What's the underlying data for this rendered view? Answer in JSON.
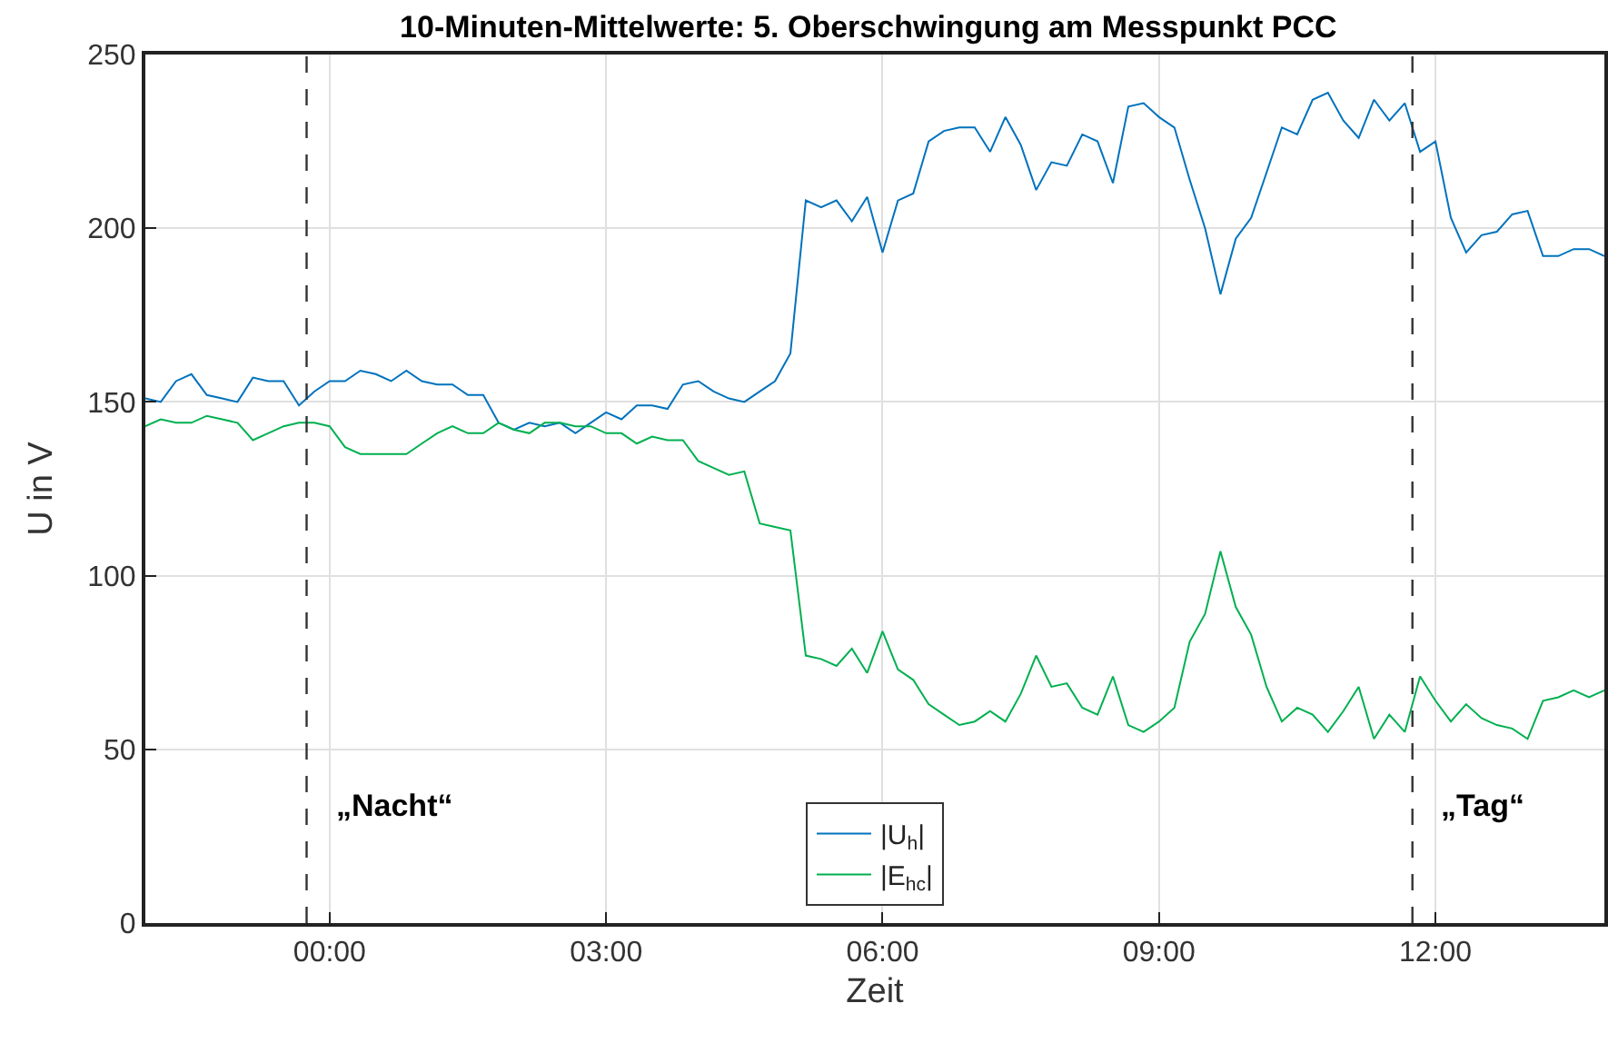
{
  "chart_data": {
    "type": "line",
    "title": "10-Minuten-Mittelwerte: 5. Oberschwingung am Messpunkt PCC",
    "xlabel": "Zeit",
    "ylabel": "U in V",
    "x": [
      -2,
      -1.833,
      -1.667,
      -1.5,
      -1.333,
      -1.167,
      -1,
      -0.833,
      -0.667,
      -0.5,
      -0.333,
      -0.167,
      0,
      0.167,
      0.333,
      0.5,
      0.667,
      0.833,
      1,
      1.167,
      1.333,
      1.5,
      1.667,
      1.833,
      2,
      2.167,
      2.333,
      2.5,
      2.667,
      2.833,
      3,
      3.167,
      3.333,
      3.5,
      3.667,
      3.833,
      4,
      4.167,
      4.333,
      4.5,
      4.667,
      4.833,
      5,
      5.167,
      5.333,
      5.5,
      5.667,
      5.833,
      6,
      6.167,
      6.333,
      6.5,
      6.667,
      6.833,
      7,
      7.167,
      7.333,
      7.5,
      7.667,
      7.833,
      8,
      8.167,
      8.333,
      8.5,
      8.667,
      8.833,
      9,
      9.167,
      9.333,
      9.5,
      9.667,
      9.833,
      10,
      10.167,
      10.333,
      10.5,
      10.667,
      10.833,
      11,
      11.167,
      11.333,
      11.5,
      11.667,
      11.833,
      12,
      12.167,
      12.333,
      12.5,
      12.667,
      12.833,
      13,
      13.167,
      13.333,
      13.5,
      13.667,
      13.833
    ],
    "series": [
      {
        "name": "|U$_{h}$|",
        "color": "#0072bd",
        "values": [
          151,
          150,
          156,
          158,
          152,
          151,
          150,
          157,
          156,
          156,
          149,
          153,
          156,
          156,
          159,
          158,
          156,
          159,
          156,
          155,
          155,
          152,
          152,
          144,
          142,
          144,
          143,
          144,
          141,
          144,
          147,
          145,
          149,
          149,
          148,
          155,
          156,
          153,
          151,
          150,
          153,
          156,
          164,
          208,
          206,
          208,
          202,
          209,
          193,
          208,
          210,
          225,
          228,
          229,
          229,
          222,
          232,
          224,
          211,
          219,
          218,
          227,
          225,
          213,
          235,
          236,
          232,
          229,
          214,
          200,
          181,
          197,
          203,
          216,
          229,
          227,
          237,
          239,
          231,
          226,
          237,
          231,
          236,
          222,
          225,
          203,
          193,
          198,
          199,
          204,
          205,
          192,
          192,
          194,
          194,
          192
        ]
      },
      {
        "name": "|E$_{hc}$|",
        "color": "#00b050",
        "values": [
          143,
          145,
          144,
          144,
          146,
          145,
          144,
          139,
          141,
          143,
          144,
          144,
          143,
          137,
          135,
          135,
          135,
          135,
          138,
          141,
          143,
          141,
          141,
          144,
          142,
          141,
          144,
          144,
          143,
          143,
          141,
          141,
          138,
          140,
          139,
          139,
          133,
          131,
          129,
          130,
          115,
          114,
          113,
          77,
          76,
          74,
          79,
          72,
          84,
          73,
          70,
          63,
          60,
          57,
          58,
          61,
          58,
          66,
          77,
          68,
          69,
          62,
          60,
          71,
          57,
          55,
          58,
          62,
          81,
          89,
          107,
          91,
          83,
          68,
          58,
          62,
          60,
          55,
          61,
          68,
          53,
          60,
          55,
          71,
          64,
          58,
          63,
          59,
          57,
          56,
          53,
          64,
          65,
          67,
          65,
          67
        ]
      }
    ],
    "xlim": [
      -2,
      13.833
    ],
    "xticks": [
      {
        "value": 0,
        "label": "00:00"
      },
      {
        "value": 3,
        "label": "03:00"
      },
      {
        "value": 6,
        "label": "06:00"
      },
      {
        "value": 9,
        "label": "09:00"
      },
      {
        "value": 12,
        "label": "12:00"
      }
    ],
    "ylim": [
      0,
      250
    ],
    "yticks": [
      0,
      50,
      100,
      150,
      200,
      250
    ],
    "grid": true,
    "legend": "bottom",
    "marker": "none",
    "line_style": "solid",
    "ref_lines": [
      {
        "axis": "x",
        "value": -0.25,
        "label": "„Nacht“",
        "color": "#333333",
        "line_style": "dashed"
      },
      {
        "axis": "x",
        "value": 11.75,
        "label": "„Tag“",
        "color": "#333333",
        "line_style": "dashed"
      }
    ]
  }
}
